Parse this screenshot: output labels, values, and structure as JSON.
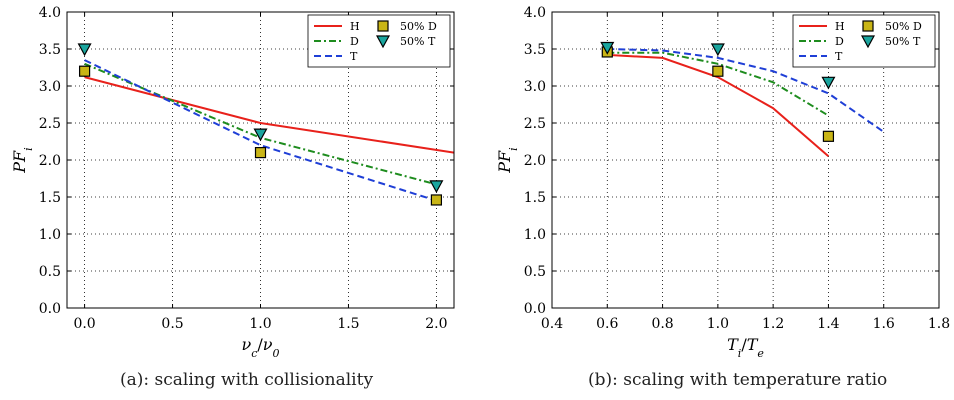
{
  "chart_data": [
    {
      "type": "line",
      "caption": "(a): scaling with collisionality",
      "xlabel": "ν_c/ν_0",
      "ylabel": "PF_i",
      "xlim": [
        -0.1,
        2.1
      ],
      "ylim": [
        0.0,
        4.0
      ],
      "xticks": [
        "0.0",
        "0.5",
        "1.0",
        "1.5",
        "2.0"
      ],
      "yticks": [
        "0.0",
        "0.5",
        "1.0",
        "1.5",
        "2.0",
        "2.5",
        "3.0",
        "3.5",
        "4.0"
      ],
      "grid": true,
      "legend_position": "top-right",
      "series": [
        {
          "name": "H",
          "style": "solid",
          "color": "#e8211b",
          "x": [
            0.0,
            1.0,
            2.1
          ],
          "y": [
            3.12,
            2.5,
            2.1
          ]
        },
        {
          "name": "D",
          "style": "dashdot",
          "color": "#1e8c1e",
          "x": [
            0.0,
            1.0,
            2.0
          ],
          "y": [
            3.3,
            2.3,
            1.67
          ]
        },
        {
          "name": "T",
          "style": "dashed",
          "color": "#1f3fd6",
          "x": [
            0.0,
            1.0,
            2.0
          ],
          "y": [
            3.35,
            2.2,
            1.45
          ]
        },
        {
          "name": "50% D",
          "marker": "square",
          "color": "#c9b516",
          "x": [
            0.0,
            1.0,
            2.0
          ],
          "y": [
            3.2,
            2.1,
            1.46
          ]
        },
        {
          "name": "50% T",
          "marker": "triangle-down",
          "color": "#1aa59e",
          "x": [
            0.0,
            1.0,
            2.0
          ],
          "y": [
            3.5,
            2.35,
            1.65
          ]
        }
      ]
    },
    {
      "type": "line",
      "caption": "(b): scaling with temperature ratio",
      "xlabel": "T_i/T_e",
      "ylabel": "PF_i",
      "xlim": [
        0.4,
        1.8
      ],
      "ylim": [
        0.0,
        4.0
      ],
      "xticks": [
        "0.4",
        "0.6",
        "0.8",
        "1.0",
        "1.2",
        "1.4",
        "1.6",
        "1.8"
      ],
      "yticks": [
        "0.0",
        "0.5",
        "1.0",
        "1.5",
        "2.0",
        "2.5",
        "3.0",
        "3.5",
        "4.0"
      ],
      "grid": true,
      "legend_position": "top-right",
      "series": [
        {
          "name": "H",
          "style": "solid",
          "color": "#e8211b",
          "x": [
            0.6,
            0.8,
            1.0,
            1.2,
            1.4
          ],
          "y": [
            3.42,
            3.38,
            3.12,
            2.7,
            2.05
          ]
        },
        {
          "name": "D",
          "style": "dashdot",
          "color": "#1e8c1e",
          "x": [
            0.6,
            0.8,
            1.0,
            1.2,
            1.4
          ],
          "y": [
            3.45,
            3.45,
            3.3,
            3.05,
            2.6
          ]
        },
        {
          "name": "T",
          "style": "dashed",
          "color": "#1f3fd6",
          "x": [
            0.6,
            0.8,
            1.0,
            1.2,
            1.4,
            1.6
          ],
          "y": [
            3.5,
            3.48,
            3.38,
            3.2,
            2.9,
            2.38
          ]
        },
        {
          "name": "50% D",
          "marker": "square",
          "color": "#c9b516",
          "x": [
            0.6,
            1.0,
            1.4
          ],
          "y": [
            3.46,
            3.2,
            2.32
          ]
        },
        {
          "name": "50% T",
          "marker": "triangle-down",
          "color": "#1aa59e",
          "x": [
            0.6,
            1.0,
            1.4
          ],
          "y": [
            3.52,
            3.5,
            3.05
          ]
        }
      ]
    }
  ]
}
